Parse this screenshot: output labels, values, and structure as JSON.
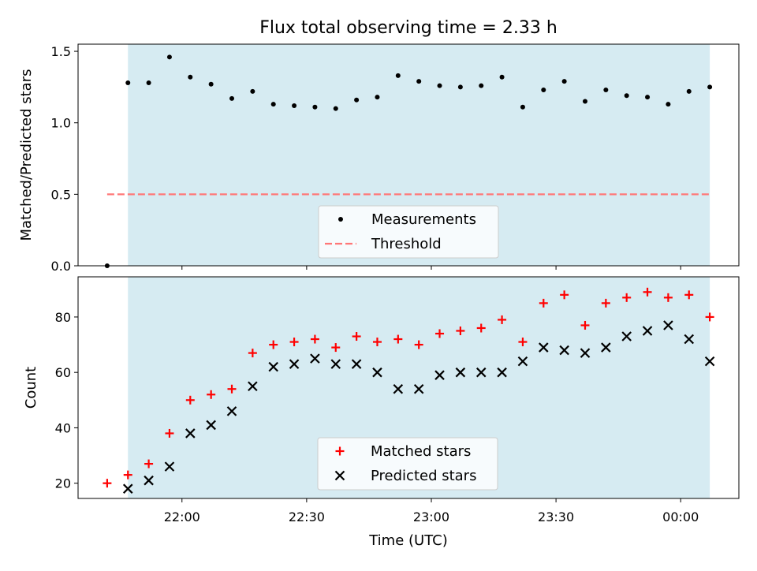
{
  "chart_data": [
    {
      "type": "scatter",
      "title": "Flux total observing time = 2.33 h",
      "xlabel": "",
      "ylabel": "Matched/Predicted stars",
      "ylim": [
        0,
        1.55
      ],
      "yticks": [
        "0.0",
        "0.5",
        "1.0",
        "1.5"
      ],
      "xlim": [
        "21:35",
        "00:14"
      ],
      "shaded_span": [
        "21:47",
        "00:07"
      ],
      "shade_color": "#add8e6",
      "legend_position": "lower center",
      "series": [
        {
          "name": "Measurements",
          "marker": "dot",
          "color": "#000000",
          "x": [
            "21:42",
            "21:47",
            "21:52",
            "21:57",
            "22:02",
            "22:07",
            "22:12",
            "22:17",
            "22:22",
            "22:27",
            "22:32",
            "22:37",
            "22:42",
            "22:47",
            "22:52",
            "22:57",
            "23:02",
            "23:07",
            "23:12",
            "23:17",
            "23:22",
            "23:27",
            "23:32",
            "23:37",
            "23:42",
            "23:47",
            "23:52",
            "23:57",
            "00:02",
            "00:07"
          ],
          "y": [
            0.0,
            1.28,
            1.28,
            1.46,
            1.32,
            1.27,
            1.17,
            1.22,
            1.13,
            1.12,
            1.11,
            1.1,
            1.16,
            1.18,
            1.33,
            1.29,
            1.26,
            1.25,
            1.26,
            1.32,
            1.11,
            1.23,
            1.29,
            1.15,
            1.23,
            1.19,
            1.18,
            1.13,
            1.22,
            1.25
          ]
        },
        {
          "name": "Threshold",
          "marker": "dashed-line",
          "color": "#ff7777",
          "x": [
            "21:42",
            "00:07"
          ],
          "y": [
            0.5,
            0.5
          ]
        }
      ]
    },
    {
      "type": "scatter",
      "title": "",
      "xlabel": "Time (UTC)",
      "ylabel": "Count",
      "ylim": [
        14.5,
        94.5
      ],
      "yticks": [
        "20",
        "40",
        "60",
        "80"
      ],
      "xlim": [
        "21:35",
        "00:14"
      ],
      "xticks": [
        "22:00",
        "22:30",
        "23:00",
        "23:30",
        "00:00"
      ],
      "shaded_span": [
        "21:47",
        "00:07"
      ],
      "shade_color": "#add8e6",
      "legend_position": "lower center",
      "series": [
        {
          "name": "Matched stars",
          "marker": "plus",
          "color": "#ff0000",
          "x": [
            "21:42",
            "21:47",
            "21:52",
            "21:57",
            "22:02",
            "22:07",
            "22:12",
            "22:17",
            "22:22",
            "22:27",
            "22:32",
            "22:37",
            "22:42",
            "22:47",
            "22:52",
            "22:57",
            "23:02",
            "23:07",
            "23:12",
            "23:17",
            "23:22",
            "23:27",
            "23:32",
            "23:37",
            "23:42",
            "23:47",
            "23:52",
            "23:57",
            "00:02",
            "00:07"
          ],
          "y": [
            20,
            23,
            27,
            38,
            50,
            52,
            54,
            67,
            70,
            71,
            72,
            69,
            73,
            71,
            72,
            70,
            74,
            75,
            76,
            79,
            71,
            85,
            88,
            77,
            85,
            87,
            89,
            87,
            88,
            80
          ]
        },
        {
          "name": "Predicted stars",
          "marker": "x",
          "color": "#000000",
          "x": [
            "21:47",
            "21:52",
            "21:57",
            "22:02",
            "22:07",
            "22:12",
            "22:17",
            "22:22",
            "22:27",
            "22:32",
            "22:37",
            "22:42",
            "22:47",
            "22:52",
            "22:57",
            "23:02",
            "23:07",
            "23:12",
            "23:17",
            "23:22",
            "23:27",
            "23:32",
            "23:37",
            "23:42",
            "23:47",
            "23:52",
            "23:57",
            "00:02",
            "00:07"
          ],
          "y": [
            18,
            21,
            26,
            38,
            41,
            46,
            55,
            62,
            63,
            65,
            63,
            63,
            60,
            54,
            54,
            59,
            60,
            60,
            60,
            64,
            69,
            68,
            67,
            69,
            73,
            75,
            77,
            72,
            64
          ]
        }
      ]
    }
  ]
}
